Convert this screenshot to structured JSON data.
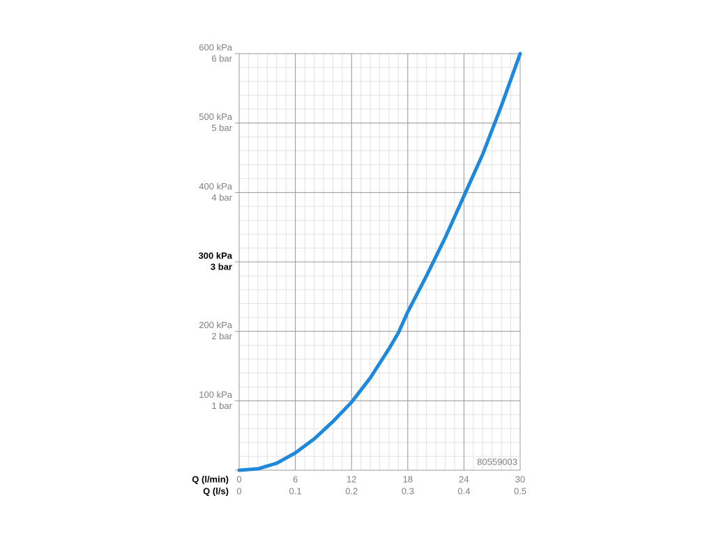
{
  "chart_data": {
    "type": "line",
    "x_axis_label": "Q (l/min)",
    "x2_axis_label": "Q (l/s)",
    "xlim": [
      0,
      30
    ],
    "xticks": [
      0,
      6,
      12,
      18,
      24,
      30
    ],
    "x2lim": [
      0,
      0.5
    ],
    "x2ticks": [
      0,
      0.1,
      0.2,
      0.3,
      0.4,
      0.5
    ],
    "ylim": [
      0,
      600
    ],
    "yticks": [
      {
        "value": 100,
        "label": "100 kPa"
      },
      {
        "value": 200,
        "label": "200 kPa"
      },
      {
        "value": 300,
        "label": "300 kPa"
      },
      {
        "value": 400,
        "label": "400 kPa"
      },
      {
        "value": 500,
        "label": "500 kPa"
      },
      {
        "value": 600,
        "label": "600 kPa"
      }
    ],
    "ytick_bar_labels": [
      "1 bar",
      "2 bar",
      "3 bar",
      "4 bar",
      "5 bar",
      "6 bar"
    ],
    "highlight_ytick": 300,
    "grid": true,
    "minor_grid": {
      "x_step": 1,
      "y_step": 20
    },
    "annotation": "80559003",
    "x": [
      0,
      2,
      4,
      6,
      8,
      10,
      12,
      14,
      16,
      17,
      18,
      20,
      22,
      24,
      26,
      28,
      30
    ],
    "series": [
      {
        "color": "#1e88da",
        "values": [
          0,
          2,
          10,
          25,
          45,
          70,
          98,
          133,
          175,
          198,
          228,
          280,
          335,
          395,
          455,
          525,
          600
        ]
      }
    ]
  }
}
